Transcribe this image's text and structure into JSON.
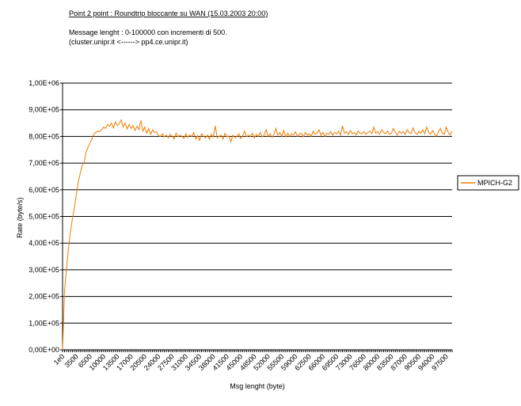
{
  "chart_data": {
    "type": "line",
    "title": "Point 2 point : Roundtrip bloccante su WAN (15.03.2003 20:00)",
    "subtitle": [
      "Message lenght :  0-100000 con incrementi di 500.",
      "(cluster.unipr.it    <------>   pp4.ce.unipr.it)"
    ],
    "x_label": "Msg lenght (byte)",
    "y_label": "Rate (byte/s)",
    "ylim": [
      0,
      1000000
    ],
    "yticks": [
      {
        "value": 0,
        "label": "0,00E+00"
      },
      {
        "value": 100000,
        "label": "1,00E+05"
      },
      {
        "value": 200000,
        "label": "2,00E+05"
      },
      {
        "value": 300000,
        "label": "3,00E+05"
      },
      {
        "value": 400000,
        "label": "4,00E+05"
      },
      {
        "value": 500000,
        "label": "5,00E+05"
      },
      {
        "value": 600000,
        "label": "6,00E+05"
      },
      {
        "value": 700000,
        "label": "7,00E+05"
      },
      {
        "value": 800000,
        "label": "8,00E+05"
      },
      {
        "value": 900000,
        "label": "9,00E+05"
      },
      {
        "value": 1000000,
        "label": "1,00E+06"
      }
    ],
    "grid": true,
    "legend": "right",
    "categories": [
      "1e0",
      null,
      null,
      null,
      null,
      null,
      null,
      "3500",
      null,
      null,
      null,
      null,
      null,
      null,
      "6500",
      null,
      null,
      null,
      null,
      null,
      null,
      "10000",
      null,
      null,
      null,
      null,
      null,
      null,
      "13500",
      null,
      null,
      null,
      null,
      null,
      null,
      "17000",
      null,
      null,
      null,
      null,
      null,
      null,
      "20500",
      null,
      null,
      null,
      null,
      null,
      null,
      "24000",
      null,
      null,
      null,
      null,
      null,
      null,
      "27500",
      null,
      null,
      null,
      null,
      null,
      null,
      "31000",
      null,
      null,
      null,
      null,
      null,
      null,
      "34500",
      null,
      null,
      null,
      null,
      null,
      null,
      "38000",
      null,
      null,
      null,
      null,
      null,
      null,
      "41500",
      null,
      null,
      null,
      null,
      null,
      null,
      "45000",
      null,
      null,
      null,
      null,
      null,
      null,
      "48500",
      null,
      null,
      null,
      null,
      null,
      null,
      "52000",
      null,
      null,
      null,
      null,
      null,
      null,
      "55500",
      null,
      null,
      null,
      null,
      null,
      null,
      "59000",
      null,
      null,
      null,
      null,
      null,
      null,
      "62500",
      null,
      null,
      null,
      null,
      null,
      null,
      "66000",
      null,
      null,
      null,
      null,
      null,
      null,
      "69500",
      null,
      null,
      null,
      null,
      null,
      null,
      "73000",
      null,
      null,
      null,
      null,
      null,
      null,
      "76500",
      null,
      null,
      null,
      null,
      null,
      null,
      "80000",
      null,
      null,
      null,
      null,
      null,
      null,
      "83500",
      null,
      null,
      null,
      null,
      null,
      null,
      "87000",
      null,
      null,
      null,
      null,
      null,
      null,
      "90500",
      null,
      null,
      null,
      null,
      null,
      null,
      "94000",
      null,
      null,
      null,
      null,
      null,
      null,
      "97500",
      null,
      null,
      null
    ],
    "series": [
      {
        "name": "MPICH-G2",
        "color": "#f07c00",
        "values": [
          0,
          220000,
          300000,
          380000,
          440000,
          490000,
          530000,
          580000,
          630000,
          660000,
          690000,
          700000,
          740000,
          760000,
          775000,
          790000,
          810000,
          815000,
          820000,
          818000,
          825000,
          835000,
          830000,
          845000,
          838000,
          850000,
          832000,
          855000,
          840000,
          848000,
          862000,
          835000,
          850000,
          828000,
          845000,
          830000,
          840000,
          822000,
          838000,
          826000,
          860000,
          820000,
          835000,
          812000,
          830000,
          808000,
          825000,
          815000,
          818000,
          803000,
          800000,
          810000,
          798000,
          805000,
          795000,
          808000,
          800000,
          790000,
          812000,
          798000,
          805000,
          800000,
          792000,
          810000,
          796000,
          805000,
          800000,
          815000,
          790000,
          803000,
          785000,
          810000,
          800000,
          795000,
          805000,
          790000,
          808000,
          798000,
          840000,
          795000,
          800000,
          805000,
          790000,
          812000,
          798000,
          802000,
          780000,
          805000,
          795000,
          800000,
          810000,
          792000,
          803000,
          820000,
          798000,
          805000,
          800000,
          812000,
          795000,
          808000,
          800000,
          815000,
          798000,
          805000,
          825000,
          800000,
          810000,
          796000,
          808000,
          830000,
          805000,
          815000,
          800000,
          822000,
          798000,
          812000,
          800000,
          810000,
          805000,
          818000,
          800000,
          808000,
          812000,
          798000,
          815000,
          805000,
          810000,
          800000,
          820000,
          808000,
          812000,
          825000,
          805000,
          815000,
          800000,
          812000,
          808000,
          818000,
          805000,
          815000,
          810000,
          820000,
          805000,
          840000,
          812000,
          818000,
          808000,
          822000,
          810000,
          815000,
          805000,
          820000,
          812000,
          810000,
          818000,
          808000,
          815000,
          820000,
          810000,
          835000,
          812000,
          818000,
          808000,
          825000,
          815000,
          810000,
          820000,
          808000,
          812000,
          830000,
          815000,
          805000,
          820000,
          812000,
          818000,
          808000,
          825000,
          815000,
          810000,
          832000,
          815000,
          808000,
          820000,
          812000,
          825000,
          810000,
          835000,
          815000,
          808000,
          822000,
          810000,
          800000,
          818000,
          830000,
          812000,
          808000,
          835000,
          815000,
          805000,
          820000
        ]
      }
    ]
  }
}
